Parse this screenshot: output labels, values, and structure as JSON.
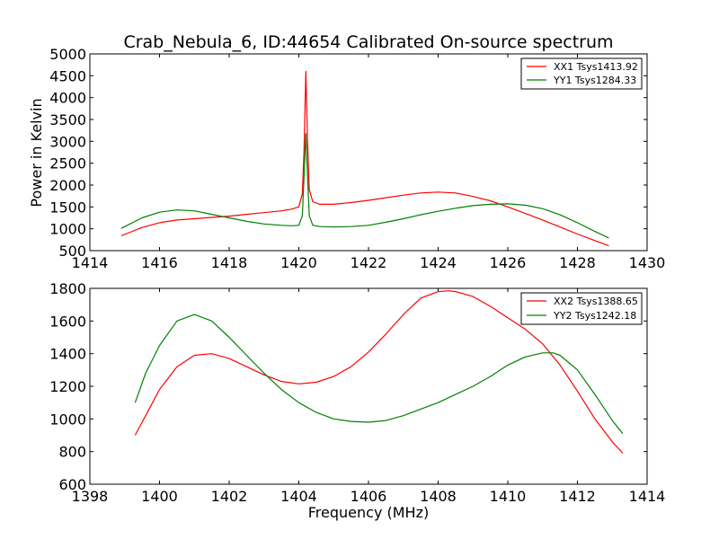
{
  "title": "Crab_Nebula_6, ID:44654 Calibrated On-source spectrum",
  "colors": {
    "xx": "#ff0000",
    "yy": "#008000"
  },
  "chart_data": [
    {
      "type": "line",
      "ylabel": "Power in Kelvin",
      "xlabel": "",
      "xlim": [
        1414,
        1430
      ],
      "ylim": [
        500,
        5000
      ],
      "xticks": [
        "1414",
        "1416",
        "1418",
        "1420",
        "1422",
        "1424",
        "1426",
        "1428",
        "1430"
      ],
      "yticks": [
        "500",
        "1000",
        "1500",
        "2000",
        "2500",
        "3000",
        "3500",
        "4000",
        "4500",
        "5000"
      ],
      "legend_position": "top-right",
      "series": [
        {
          "name": "XX1 Tsys1413.92",
          "color": "#ff0000",
          "x": [
            1414.9,
            1415.5,
            1416.0,
            1416.5,
            1417.0,
            1417.5,
            1418.0,
            1418.5,
            1419.0,
            1419.5,
            1419.8,
            1420.0,
            1420.1,
            1420.15,
            1420.2,
            1420.25,
            1420.3,
            1420.4,
            1420.6,
            1421.0,
            1421.5,
            1422.0,
            1422.5,
            1423.0,
            1423.5,
            1424.0,
            1424.5,
            1425.0,
            1425.5,
            1426.0,
            1426.5,
            1427.0,
            1427.5,
            1428.0,
            1428.5,
            1428.9
          ],
          "y": [
            840,
            1030,
            1140,
            1200,
            1230,
            1260,
            1290,
            1330,
            1370,
            1410,
            1450,
            1500,
            1800,
            2800,
            4600,
            3000,
            1900,
            1620,
            1560,
            1560,
            1600,
            1650,
            1710,
            1770,
            1820,
            1840,
            1820,
            1740,
            1640,
            1500,
            1350,
            1200,
            1040,
            880,
            730,
            610
          ]
        },
        {
          "name": "YY1 Tsys1284.33",
          "color": "#008000",
          "x": [
            1414.9,
            1415.5,
            1416.0,
            1416.5,
            1417.0,
            1417.5,
            1418.0,
            1418.5,
            1419.0,
            1419.5,
            1419.8,
            1420.0,
            1420.1,
            1420.15,
            1420.2,
            1420.25,
            1420.3,
            1420.4,
            1420.6,
            1421.0,
            1421.5,
            1422.0,
            1422.5,
            1423.0,
            1423.5,
            1424.0,
            1424.5,
            1425.0,
            1425.5,
            1426.0,
            1426.5,
            1427.0,
            1427.5,
            1428.0,
            1428.5,
            1428.9
          ],
          "y": [
            1010,
            1250,
            1380,
            1430,
            1410,
            1330,
            1250,
            1170,
            1110,
            1080,
            1070,
            1080,
            1300,
            2200,
            3180,
            2200,
            1300,
            1080,
            1050,
            1040,
            1050,
            1080,
            1150,
            1230,
            1320,
            1400,
            1470,
            1530,
            1560,
            1570,
            1540,
            1460,
            1320,
            1140,
            940,
            790
          ]
        }
      ]
    },
    {
      "type": "line",
      "ylabel": "",
      "xlabel": "Frequency (MHz)",
      "xlim": [
        1398,
        1414
      ],
      "ylim": [
        600,
        1800
      ],
      "xticks": [
        "1398",
        "1400",
        "1402",
        "1404",
        "1406",
        "1408",
        "1410",
        "1412",
        "1414"
      ],
      "yticks": [
        "600",
        "800",
        "1000",
        "1200",
        "1400",
        "1600",
        "1800"
      ],
      "legend_position": "top-right",
      "series": [
        {
          "name": "XX2 Tsys1388.65",
          "color": "#ff0000",
          "x": [
            1399.3,
            1399.6,
            1400.0,
            1400.5,
            1401.0,
            1401.5,
            1402.0,
            1402.5,
            1403.0,
            1403.5,
            1404.0,
            1404.5,
            1405.0,
            1405.5,
            1406.0,
            1406.5,
            1407.0,
            1407.5,
            1408.0,
            1408.3,
            1408.5,
            1409.0,
            1409.5,
            1410.0,
            1410.5,
            1411.0,
            1411.5,
            1412.0,
            1412.5,
            1413.0,
            1413.3
          ],
          "y": [
            900,
            1020,
            1180,
            1320,
            1390,
            1400,
            1370,
            1320,
            1270,
            1230,
            1215,
            1225,
            1260,
            1320,
            1410,
            1520,
            1640,
            1740,
            1780,
            1785,
            1780,
            1750,
            1690,
            1620,
            1550,
            1460,
            1330,
            1170,
            1000,
            860,
            790
          ]
        },
        {
          "name": "YY2 Tsys1242.18",
          "color": "#008000",
          "x": [
            1399.3,
            1399.6,
            1400.0,
            1400.5,
            1401.0,
            1401.5,
            1402.0,
            1402.5,
            1403.0,
            1403.5,
            1404.0,
            1404.5,
            1405.0,
            1405.5,
            1406.0,
            1406.5,
            1407.0,
            1407.5,
            1408.0,
            1408.5,
            1409.0,
            1409.5,
            1410.0,
            1410.5,
            1411.0,
            1411.3,
            1411.5,
            1412.0,
            1412.5,
            1413.0,
            1413.3
          ],
          "y": [
            1100,
            1280,
            1450,
            1600,
            1640,
            1600,
            1500,
            1390,
            1280,
            1180,
            1100,
            1040,
            1000,
            985,
            980,
            990,
            1020,
            1060,
            1100,
            1150,
            1200,
            1260,
            1330,
            1380,
            1405,
            1405,
            1390,
            1300,
            1150,
            990,
            910
          ]
        }
      ]
    }
  ]
}
